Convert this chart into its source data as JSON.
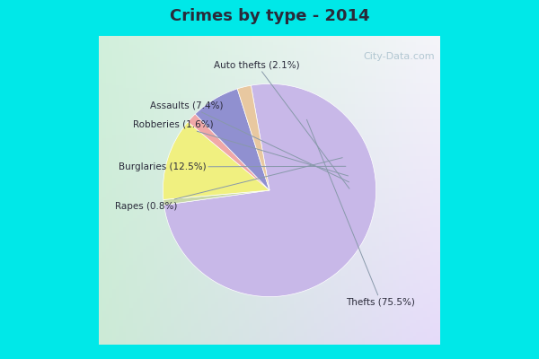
{
  "title": "Crimes by type - 2014",
  "values": [
    75.5,
    12.5,
    7.4,
    2.1,
    1.6,
    0.8
  ],
  "colors": [
    "#c8b8e8",
    "#f0f080",
    "#8888d0",
    "#e8c8a0",
    "#f0a8a8",
    "#c8d8a8"
  ],
  "label_texts": [
    "Thefts (75.5%)",
    "Burglaries (12.5%)",
    "Assaults (7.4%)",
    "Auto thefts (2.1%)",
    "Robberies (1.6%)",
    "Rapes (0.8%)"
  ],
  "border_color": "#00e8e8",
  "bg_color": "#d8ece0",
  "title_color": "#2a2a3a",
  "label_color": "#2a2a3a",
  "watermark": "City-Data.com",
  "border_width": 10
}
